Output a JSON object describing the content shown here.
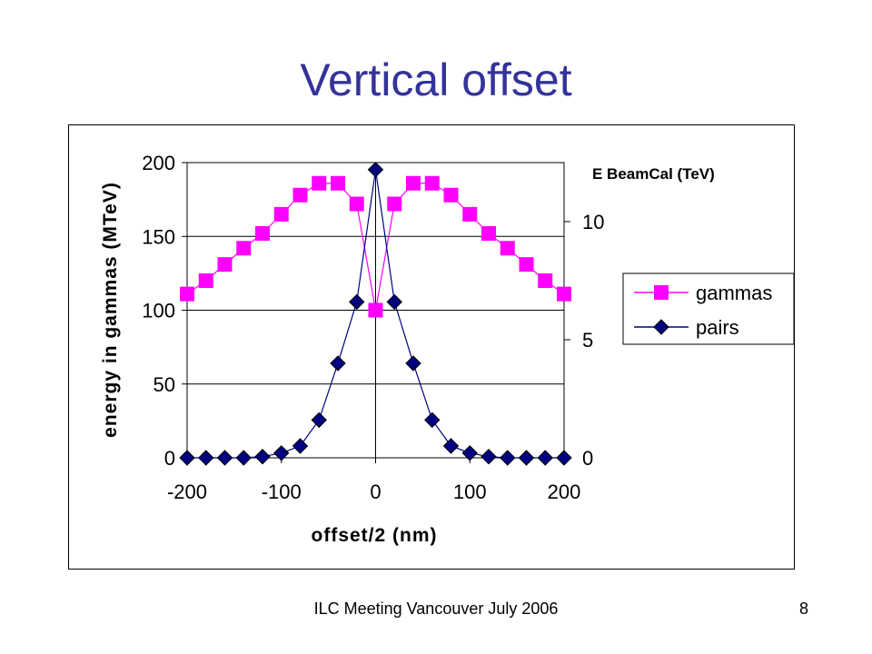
{
  "slide": {
    "title": "Vertical offset",
    "footer": "ILC Meeting Vancouver July 2006",
    "page_number": "8"
  },
  "chart_data": {
    "type": "line",
    "xlabel": "offset/2 (nm)",
    "ylabel": "energy in gammas (MTeV)",
    "y2label": "E BeamCal (TeV)",
    "xlim": [
      -200,
      200
    ],
    "ylim": [
      0,
      200
    ],
    "y2lim": [
      0,
      12.5
    ],
    "xticks": [
      "-200",
      "-100",
      "0",
      "100",
      "200"
    ],
    "yticks": [
      "0",
      "50",
      "100",
      "150",
      "200"
    ],
    "y2ticks": [
      "0",
      "5",
      "10"
    ],
    "grid": "horizontal",
    "legend_position": "right",
    "x": [
      -200,
      -180,
      -160,
      -140,
      -120,
      -100,
      -80,
      -60,
      -40,
      -20,
      0,
      20,
      40,
      60,
      80,
      100,
      120,
      140,
      160,
      180,
      200
    ],
    "series": [
      {
        "name": "gammas",
        "axis": "left",
        "color": "#FF00FF",
        "marker": "square",
        "values": [
          111,
          120,
          131,
          142,
          152,
          165,
          178,
          186,
          186,
          172,
          100,
          172,
          186,
          186,
          178,
          165,
          152,
          142,
          131,
          120,
          111
        ]
      },
      {
        "name": "pairs",
        "axis": "right",
        "color": "#000080",
        "marker": "diamond",
        "values": [
          0,
          0,
          0,
          0,
          0.05,
          0.2,
          0.5,
          1.6,
          4.0,
          6.6,
          12.2,
          6.6,
          4.0,
          1.6,
          0.5,
          0.2,
          0.05,
          0,
          0,
          0,
          0
        ]
      }
    ]
  }
}
